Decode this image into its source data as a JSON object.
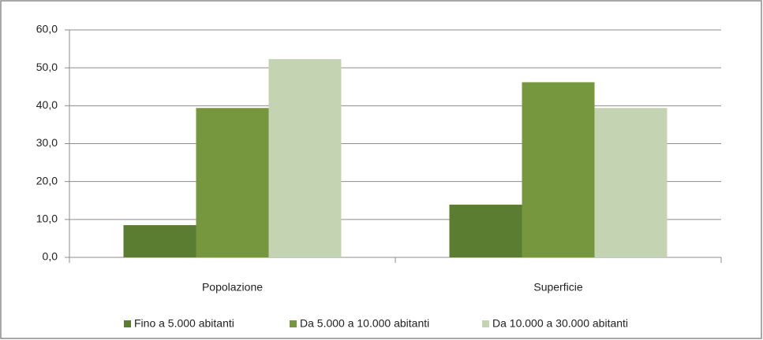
{
  "chart_data": {
    "type": "bar",
    "categories": [
      "Popolazione",
      "Superficie"
    ],
    "series": [
      {
        "name": "Fino a 5.000 abitanti",
        "color": "#5a7d32",
        "values": [
          8.5,
          13.9
        ]
      },
      {
        "name": "Da 5.000 a 10.000 abitanti",
        "color": "#77973f",
        "values": [
          39.4,
          46.2
        ]
      },
      {
        "name": "Da 10.000 a 30.000 abitanti",
        "color": "#c4d4b2",
        "values": [
          52.3,
          39.4
        ]
      }
    ],
    "ylim": [
      0,
      60
    ],
    "yticks": [
      {
        "value": 0,
        "label": "0,0"
      },
      {
        "value": 10,
        "label": "10,0"
      },
      {
        "value": 20,
        "label": "20,0"
      },
      {
        "value": 30,
        "label": "30,0"
      },
      {
        "value": 40,
        "label": "40,0"
      },
      {
        "value": 50,
        "label": "50,0"
      },
      {
        "value": 60,
        "label": "60,0"
      }
    ],
    "grid": true,
    "legend": "bottom"
  }
}
